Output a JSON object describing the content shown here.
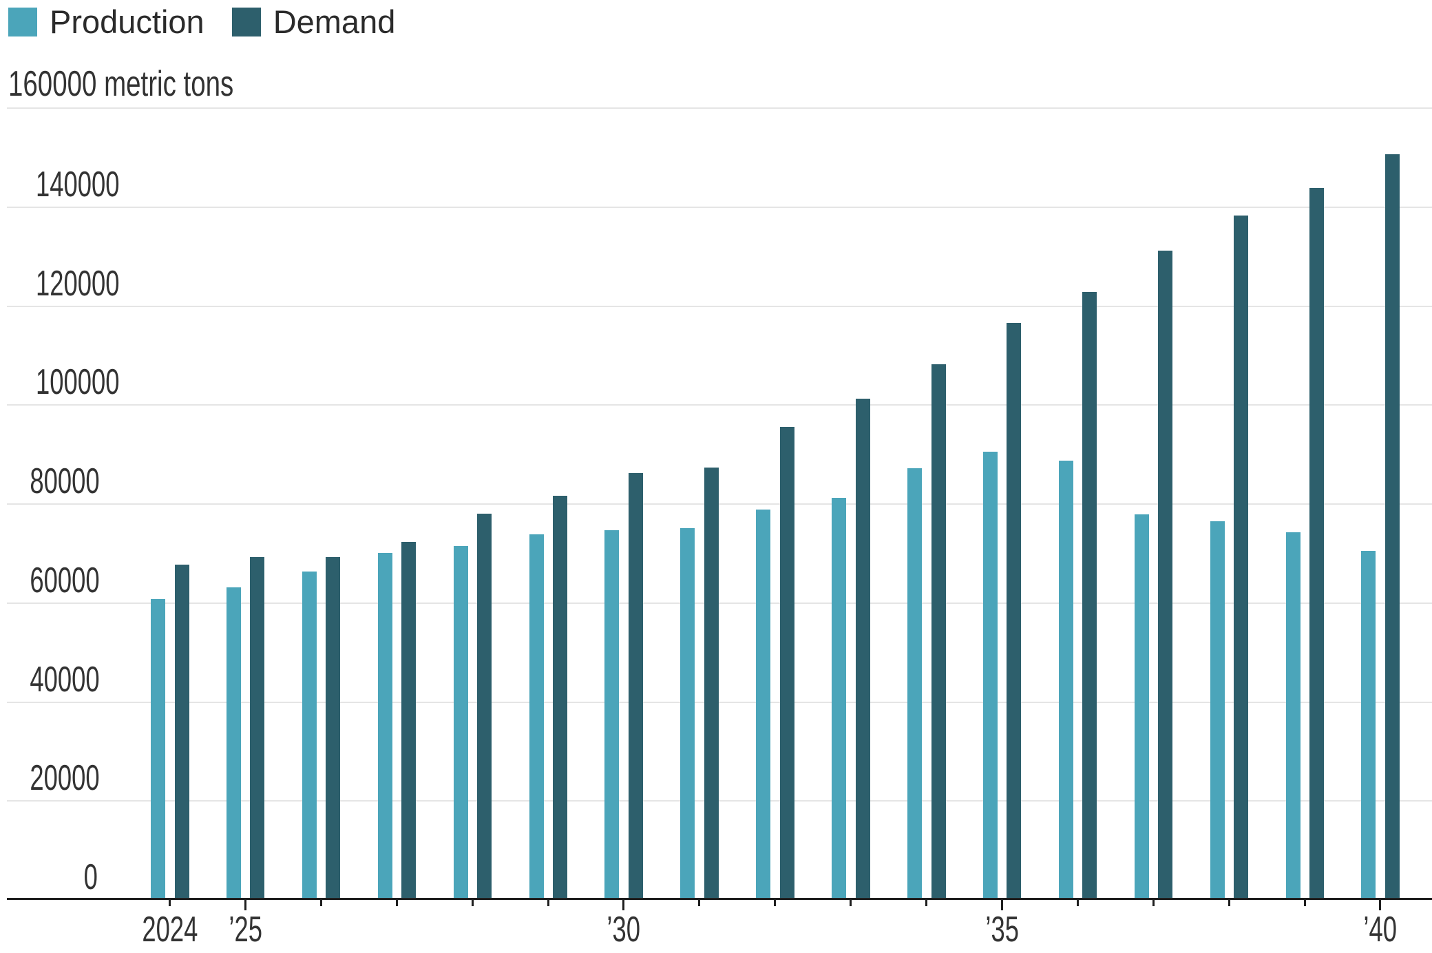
{
  "legend": {
    "items": [
      {
        "label": "Production",
        "color": "#4ba5ba"
      },
      {
        "label": "Demand",
        "color": "#2d5f6c"
      }
    ]
  },
  "axis": {
    "unit_label": "160000 metric tons"
  },
  "chart_data": {
    "type": "bar",
    "title": "",
    "unit_label": "160000 metric tons",
    "xlabel": "",
    "ylabel": "metric tons",
    "ylim": [
      0,
      160000
    ],
    "ytick_interval": 20000,
    "ytick_labels": [
      "140000",
      "120000",
      "100000",
      "80000",
      "60000",
      "40000",
      "20000",
      "0"
    ],
    "grid": "horizontal",
    "legend_position": "top-left",
    "categories": [
      2024,
      2025,
      2026,
      2027,
      2028,
      2029,
      2030,
      2031,
      2032,
      2033,
      2034,
      2035,
      2036,
      2037,
      2038,
      2039,
      2040
    ],
    "series": [
      {
        "name": "Production",
        "color": "#4ba5ba",
        "values": [
          60400,
          62800,
          66000,
          69700,
          71100,
          73400,
          74300,
          74700,
          78500,
          80800,
          86800,
          90100,
          88400,
          77500,
          76100,
          73900,
          70100
        ]
      },
      {
        "name": "Demand",
        "color": "#2d5f6c",
        "values": [
          67400,
          68800,
          68800,
          71900,
          77600,
          81200,
          85900,
          86900,
          95100,
          100800,
          107800,
          116200,
          122400,
          130800,
          137900,
          143400,
          150300
        ]
      }
    ],
    "xtick_marks": [
      {
        "year": 2024,
        "label": "2024",
        "long_tick": false
      },
      {
        "year": 2025,
        "label": "’25",
        "long_tick": true
      },
      {
        "year": 2026,
        "label": "",
        "long_tick": false
      },
      {
        "year": 2027,
        "label": "",
        "long_tick": false
      },
      {
        "year": 2028,
        "label": "",
        "long_tick": false
      },
      {
        "year": 2029,
        "label": "",
        "long_tick": false
      },
      {
        "year": 2030,
        "label": "’30",
        "long_tick": true
      },
      {
        "year": 2031,
        "label": "",
        "long_tick": false
      },
      {
        "year": 2032,
        "label": "",
        "long_tick": false
      },
      {
        "year": 2033,
        "label": "",
        "long_tick": false
      },
      {
        "year": 2034,
        "label": "",
        "long_tick": false
      },
      {
        "year": 2035,
        "label": "’35",
        "long_tick": true
      },
      {
        "year": 2036,
        "label": "",
        "long_tick": false
      },
      {
        "year": 2037,
        "label": "",
        "long_tick": false
      },
      {
        "year": 2038,
        "label": "",
        "long_tick": false
      },
      {
        "year": 2039,
        "label": "",
        "long_tick": false
      },
      {
        "year": 2040,
        "label": "’40",
        "long_tick": true
      }
    ]
  },
  "colors": {
    "production": "#4ba5ba",
    "demand": "#2d5f6c",
    "gridline": "#e5e5e5",
    "axis_line": "#1f1f1f",
    "label_text": "#333333",
    "legend_text": "#2b2b2b"
  }
}
